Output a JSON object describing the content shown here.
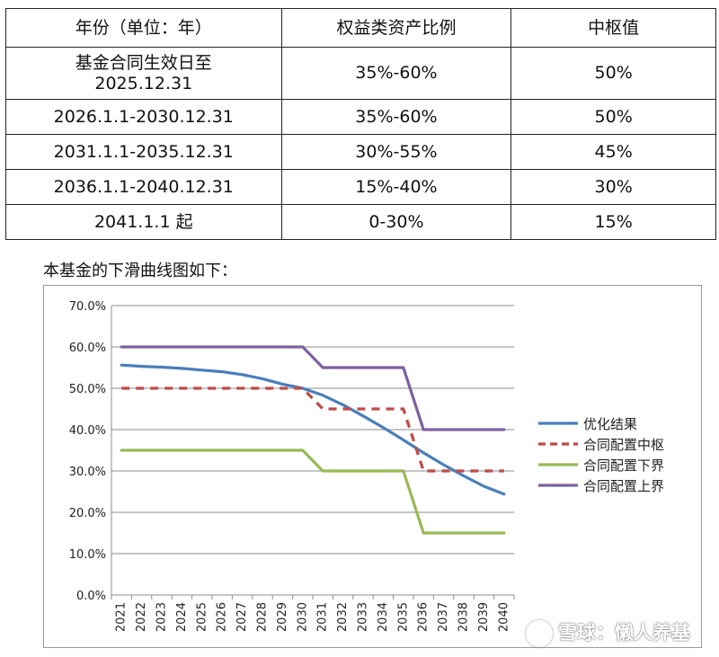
{
  "table": {
    "headers": [
      "年份（单位：年）",
      "权益类资产比例",
      "中枢值"
    ],
    "rows": [
      {
        "period": "基金合同生效日至\n2025.12.31",
        "range": "35%-60%",
        "center": "50%"
      },
      {
        "period": "2026.1.1-2030.12.31",
        "range": "35%-60%",
        "center": "50%"
      },
      {
        "period": "2031.1.1-2035.12.31",
        "range": "30%-55%",
        "center": "45%"
      },
      {
        "period": "2036.1.1-2040.12.31",
        "range": "15%-40%",
        "center": "30%"
      },
      {
        "period": "2041.1.1 起",
        "range": "0-30%",
        "center": "15%"
      }
    ]
  },
  "caption": "本基金的下滑曲线图如下：",
  "watermark": "雪球：懒人养基",
  "chart_data": {
    "type": "line",
    "categories": [
      "2021",
      "2022",
      "2023",
      "2024",
      "2025",
      "2026",
      "2027",
      "2028",
      "2029",
      "2030",
      "2031",
      "2032",
      "2033",
      "2034",
      "2035",
      "2036",
      "2037",
      "2038",
      "2039",
      "2040"
    ],
    "y_ticks": [
      "0.0%",
      "10.0%",
      "20.0%",
      "30.0%",
      "40.0%",
      "50.0%",
      "60.0%",
      "70.0%"
    ],
    "ylim": [
      0,
      70
    ],
    "grid": true,
    "legend_position": "right",
    "series": [
      {
        "name": "优化结果",
        "color": "#4a7ebb",
        "style": "solid",
        "values": [
          55.6,
          55.3,
          55.1,
          54.8,
          54.4,
          54.0,
          53.3,
          52.3,
          51.0,
          50.0,
          48.3,
          46.0,
          43.3,
          40.5,
          37.5,
          34.4,
          31.5,
          28.8,
          26.3,
          24.4
        ]
      },
      {
        "name": "合同配置中枢",
        "color": "#be4b48",
        "style": "dashed",
        "values": [
          50,
          50,
          50,
          50,
          50,
          50,
          50,
          50,
          50,
          50,
          45,
          45,
          45,
          45,
          45,
          30,
          30,
          30,
          30,
          30
        ]
      },
      {
        "name": "合同配置下界",
        "color": "#98b954",
        "style": "solid",
        "values": [
          35,
          35,
          35,
          35,
          35,
          35,
          35,
          35,
          35,
          35,
          30,
          30,
          30,
          30,
          30,
          15,
          15,
          15,
          15,
          15
        ]
      },
      {
        "name": "合同配置上界",
        "color": "#7d60a0",
        "style": "solid",
        "values": [
          60,
          60,
          60,
          60,
          60,
          60,
          60,
          60,
          60,
          60,
          55,
          55,
          55,
          55,
          55,
          40,
          40,
          40,
          40,
          40
        ]
      }
    ]
  }
}
